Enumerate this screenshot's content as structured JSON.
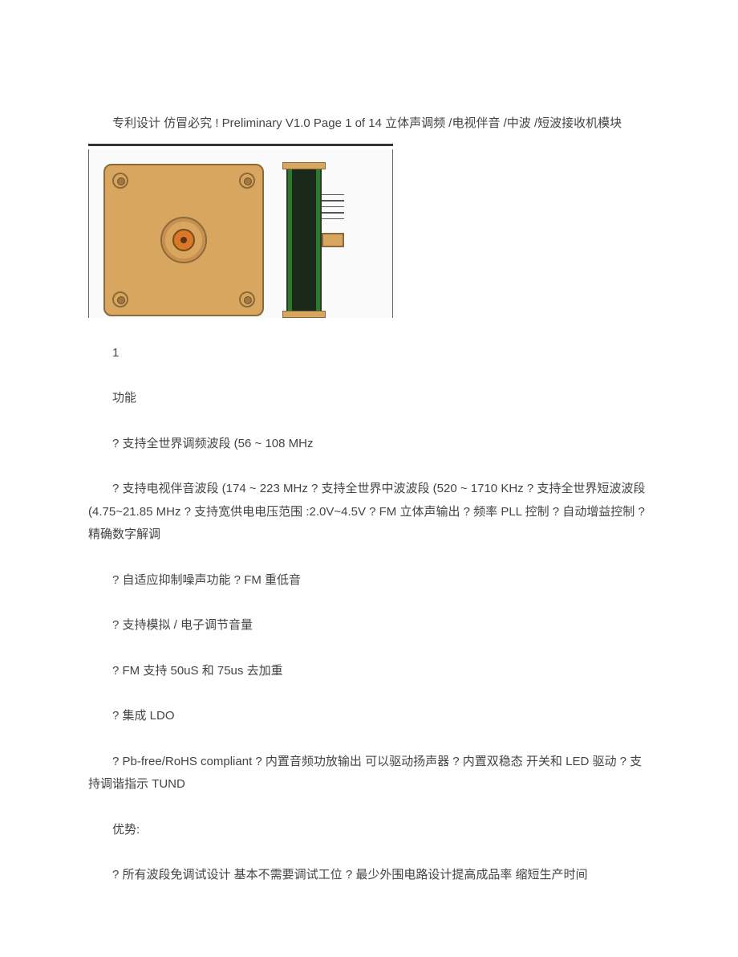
{
  "document": {
    "text_color": "#444444",
    "background_color": "#ffffff",
    "font_size_pt": 15,
    "line_height": 1.9,
    "header": "专利设计 仿冒必究 ! Preliminary V1.0 Page 1 of 14 立体声调频 /电视伴音 /中波 /短波接收机模块",
    "diagram": {
      "type": "infographic",
      "module_body_color": "#d9a65f",
      "module_border_color": "#8a6a3a",
      "hub_inner_color": "#d87828",
      "pcb_color": "#2a7a2a",
      "side_body_color": "#1a2a1a",
      "rule_color": "#333333",
      "pin_count": 5,
      "screw_count": 4
    },
    "section_number": "1",
    "section_title": "功能",
    "lines": {
      "l3": "? 支持全世界调频波段 (56 ~ 108 MHz",
      "l4": "? 支持电视伴音波段 (174 ~ 223 MHz ? 支持全世界中波波段 (520 ~ 1710 KHz ? 支持全世界短波波段 (4.75~21.85 MHz ? 支持宽供电电压范围 :2.0V~4.5V ? FM 立体声输出 ? 频率 PLL 控制 ? 自动增益控制 ? 精确数字解调",
      "l5": "? 自适应抑制噪声功能 ? FM 重低音",
      "l6": "? 支持模拟 / 电子调节音量",
      "l7": "? FM 支持 50uS 和 75us 去加重",
      "l8": "? 集成 LDO",
      "l9": "? Pb-free/RoHS compliant ? 内置音频功放输出 可以驱动扬声器 ? 内置双稳态 开关和 LED 驱动 ? 支持调谐指示 TUND",
      "advantages_label": "优势:",
      "l10": "? 所有波段免调试设计 基本不需要调试工位 ? 最少外围电路设计提高成品率 缩短生产时间"
    }
  }
}
